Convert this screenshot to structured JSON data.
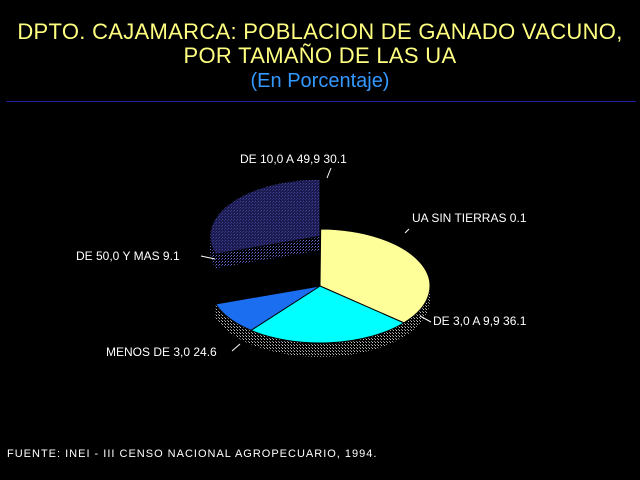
{
  "title": {
    "line1": "DPTO. CAJAMARCA: POBLACION DE GANADO VACUNO,",
    "line2": "POR TAMAÑO DE LAS UA",
    "subtitle": "(En Porcentaje)"
  },
  "source": "FUENTE: INEI - III CENSO NACIONAL AGROPECUARIO, 1994.",
  "chart_data": {
    "type": "pie",
    "style": "3d-exploded",
    "slices": [
      {
        "label": "UA SIN TIERRAS",
        "value": 0.1,
        "display": "UA SIN TIERRAS  0.1",
        "color": "#ffff00",
        "exploded": false
      },
      {
        "label": "DE 3,0 A 9,9",
        "value": 36.1,
        "display": "DE 3,0 A 9,9  36.1",
        "color": "#ffff99",
        "exploded": false
      },
      {
        "label": "MENOS DE 3,0",
        "value": 24.6,
        "display": "MENOS DE 3,0  24.6",
        "color": "#00ffff",
        "exploded": false
      },
      {
        "label": "DE 50,0 Y MAS",
        "value": 9.1,
        "display": "DE 50,0 Y MAS  9.1",
        "color": "#1c6ef0",
        "exploded": false
      },
      {
        "label": "DE 10,0 A 49,9",
        "value": 30.1,
        "display": "DE 10,0 A 49,9  30.1",
        "color": "#2a2a7a",
        "exploded": true
      }
    ]
  }
}
